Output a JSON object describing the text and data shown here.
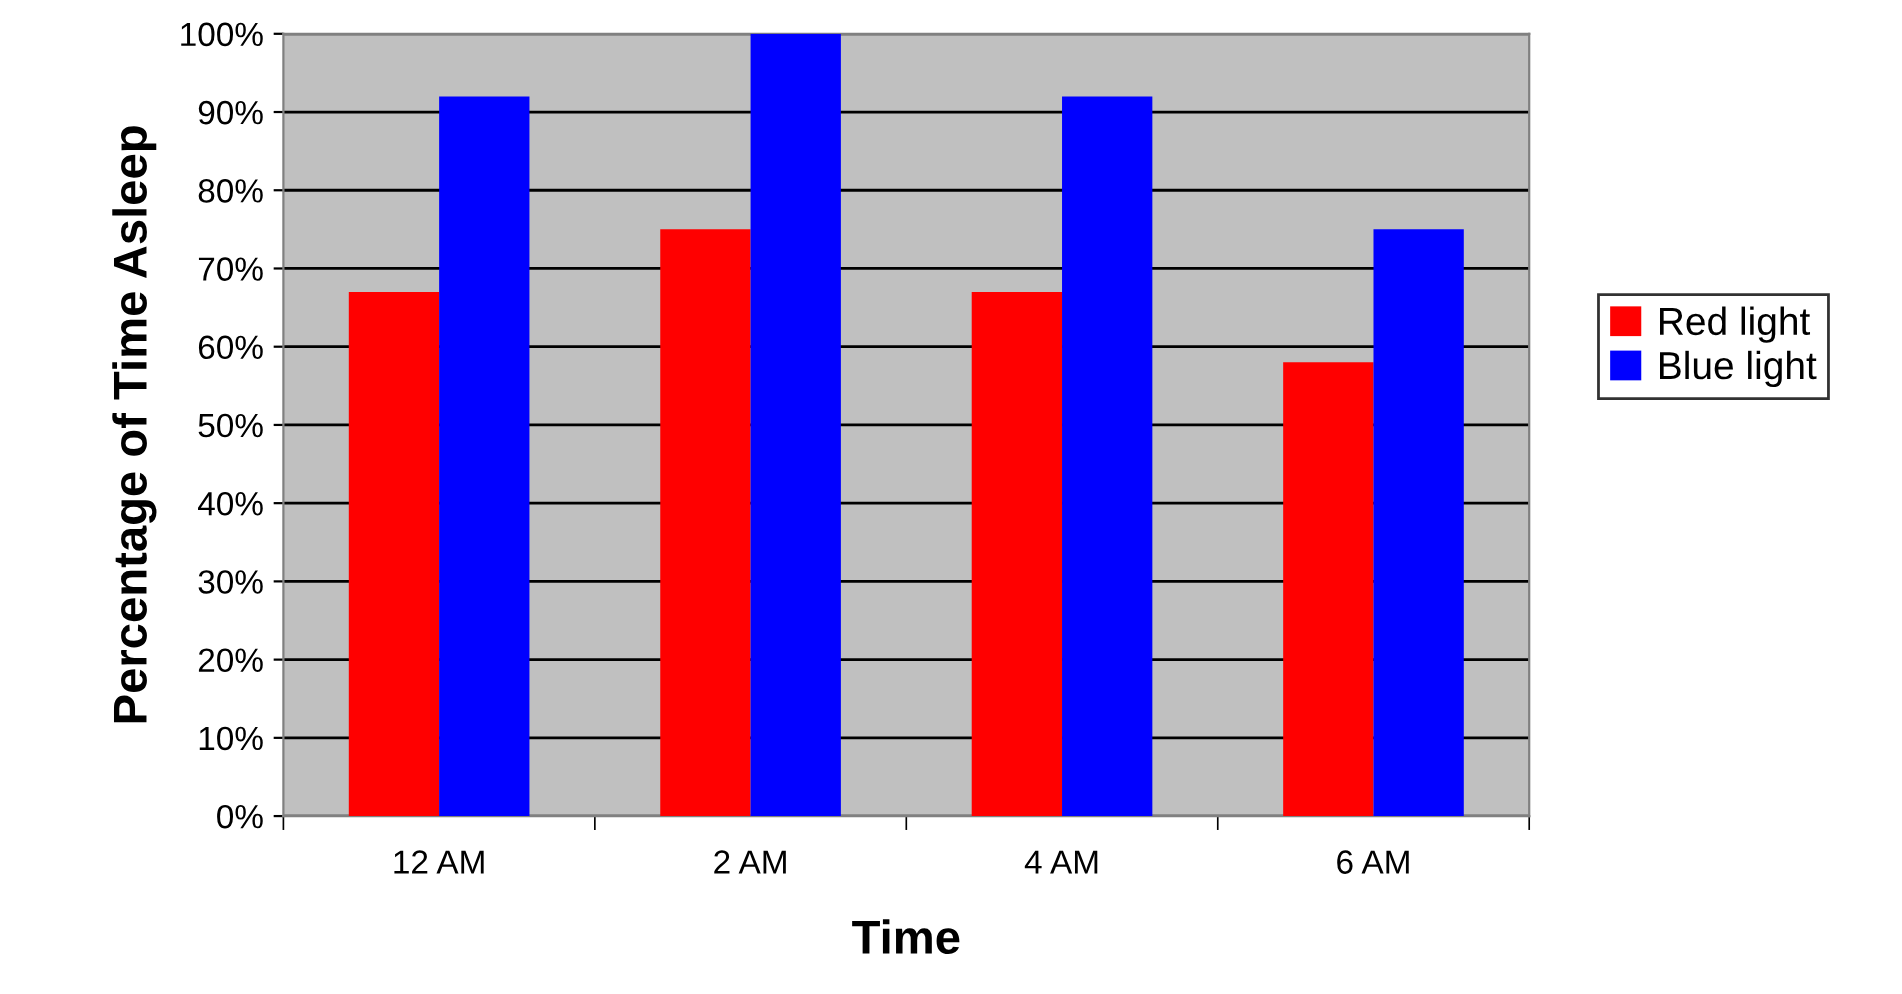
{
  "chart_data": {
    "type": "bar",
    "xlabel": "Time",
    "ylabel": "Percentage of Time Asleep",
    "categories": [
      "12 AM",
      "2 AM",
      "4 AM",
      "6 AM"
    ],
    "series": [
      {
        "name": "Red light",
        "color": "#ff0000",
        "values": [
          67,
          75,
          67,
          58
        ]
      },
      {
        "name": "Blue light",
        "color": "#0000ff",
        "values": [
          92,
          100,
          92,
          75
        ]
      }
    ],
    "ylim": [
      0,
      100
    ],
    "yticks": [
      {
        "value": 0,
        "label": "0%"
      },
      {
        "value": 10,
        "label": "10%"
      },
      {
        "value": 20,
        "label": "20%"
      },
      {
        "value": 30,
        "label": "30%"
      },
      {
        "value": 40,
        "label": "40%"
      },
      {
        "value": 50,
        "label": "50%"
      },
      {
        "value": 60,
        "label": "60%"
      },
      {
        "value": 70,
        "label": "70%"
      },
      {
        "value": 80,
        "label": "80%"
      },
      {
        "value": 90,
        "label": "90%"
      },
      {
        "value": 100,
        "label": "100%"
      }
    ],
    "grid": "y",
    "legend": "right"
  }
}
